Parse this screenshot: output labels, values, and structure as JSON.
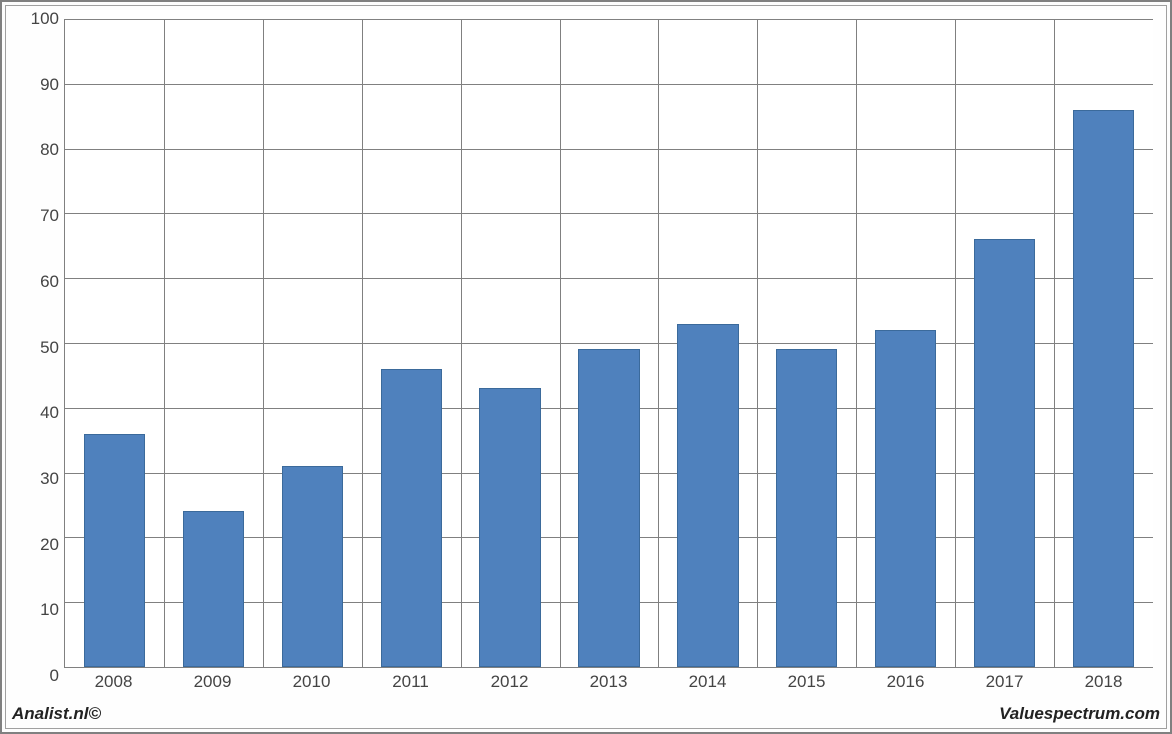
{
  "chart": {
    "type": "bar",
    "categories": [
      "2008",
      "2009",
      "2010",
      "2011",
      "2012",
      "2013",
      "2014",
      "2015",
      "2016",
      "2017",
      "2018"
    ],
    "values": [
      36,
      24,
      31,
      46,
      43,
      49,
      53,
      49,
      52,
      66,
      86
    ],
    "bar_color": "#4f81bd",
    "bar_border_color": "#3b6a9b",
    "ylim_min": 0,
    "ylim_max": 100,
    "ytick_step": 10,
    "yticks": [
      0,
      10,
      20,
      30,
      40,
      50,
      60,
      70,
      80,
      90,
      100
    ],
    "grid_color": "#808080",
    "background_color": "#ffffff",
    "bar_width_ratio": 0.62,
    "label_fontsize": 17,
    "label_color": "#444444",
    "font_family": "Arial"
  },
  "footer": {
    "left": "Analist.nl©",
    "right": "Valuespectrum.com"
  }
}
